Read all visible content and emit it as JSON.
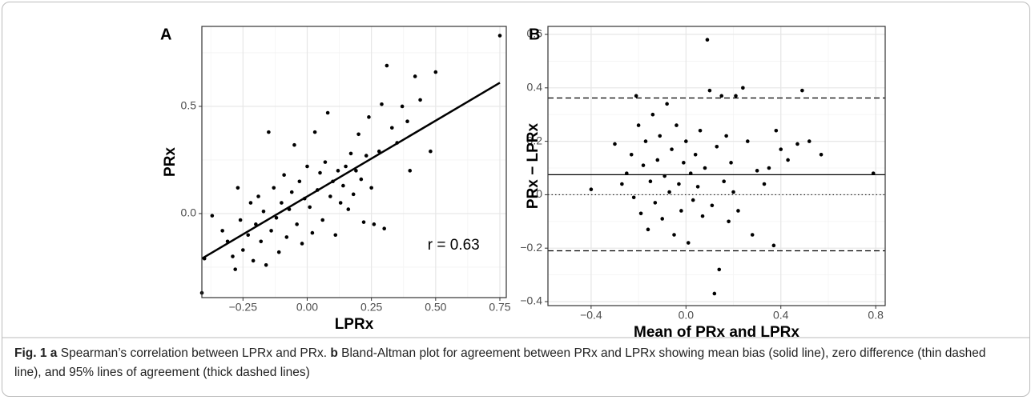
{
  "chart_data": [
    {
      "type": "scatter",
      "panel_label": "A",
      "x_label": "LPRx",
      "y_label": "PRx",
      "color": "#000000",
      "grid": true,
      "xlim": [
        -0.41,
        0.775
      ],
      "ylim": [
        -0.392,
        0.873
      ],
      "xticks": [
        {
          "value": -0.25,
          "label": "−0.25"
        },
        {
          "value": 0,
          "label": "0.00"
        },
        {
          "value": 0.25,
          "label": "0.25"
        },
        {
          "value": 0.5,
          "label": "0.50"
        },
        {
          "value": 0.75,
          "label": "0.75"
        }
      ],
      "yticks": [
        {
          "value": 0,
          "label": "0.0"
        },
        {
          "value": 0.5,
          "label": "0.5"
        }
      ],
      "x": [
        -0.41,
        -0.4,
        -0.37,
        -0.33,
        -0.31,
        -0.29,
        -0.28,
        -0.27,
        -0.26,
        -0.25,
        -0.23,
        -0.22,
        -0.21,
        -0.2,
        -0.19,
        -0.18,
        -0.17,
        -0.16,
        -0.15,
        -0.14,
        -0.13,
        -0.12,
        -0.11,
        -0.1,
        -0.09,
        -0.08,
        -0.07,
        -0.06,
        -0.05,
        -0.04,
        -0.03,
        -0.02,
        -0.01,
        0.0,
        0.01,
        0.02,
        0.03,
        0.04,
        0.05,
        0.06,
        0.07,
        0.08,
        0.09,
        0.1,
        0.11,
        0.12,
        0.13,
        0.14,
        0.15,
        0.16,
        0.17,
        0.18,
        0.19,
        0.2,
        0.21,
        0.22,
        0.23,
        0.24,
        0.25,
        0.26,
        0.28,
        0.29,
        0.3,
        0.31,
        0.33,
        0.35,
        0.37,
        0.39,
        0.4,
        0.42,
        0.44,
        0.48,
        0.5,
        0.75
      ],
      "y": [
        -0.37,
        -0.21,
        -0.01,
        -0.08,
        -0.13,
        -0.2,
        -0.26,
        0.12,
        -0.03,
        -0.17,
        -0.1,
        0.05,
        -0.22,
        -0.05,
        0.08,
        -0.13,
        0.01,
        -0.24,
        0.38,
        -0.08,
        0.12,
        -0.02,
        -0.18,
        0.05,
        0.18,
        -0.11,
        0.02,
        0.1,
        0.32,
        -0.05,
        0.15,
        -0.14,
        0.07,
        0.22,
        0.03,
        -0.09,
        0.38,
        0.11,
        0.19,
        -0.03,
        0.24,
        0.47,
        0.08,
        0.15,
        -0.1,
        0.2,
        0.05,
        0.13,
        0.22,
        0.02,
        0.28,
        0.09,
        0.2,
        0.37,
        0.16,
        -0.04,
        0.27,
        0.45,
        0.12,
        -0.05,
        0.29,
        0.51,
        -0.07,
        0.69,
        0.4,
        0.33,
        0.5,
        0.43,
        0.2,
        0.64,
        0.53,
        0.29,
        0.66,
        0.83
      ],
      "fit_line": {
        "x": [
          -0.41,
          0.75
        ],
        "y": [
          -0.21,
          0.61
        ]
      },
      "annotation": {
        "text": "r = 0.63",
        "x": 0.57,
        "y": -0.15
      }
    },
    {
      "type": "scatter",
      "panel_label": "B",
      "x_label": "Mean of PRx and LPRx",
      "y_label": "PRx − LPRx",
      "color": "#000000",
      "grid": true,
      "xlim": [
        -0.582,
        0.84
      ],
      "ylim": [
        -0.415,
        0.63
      ],
      "xticks": [
        {
          "value": -0.4,
          "label": "−0.4"
        },
        {
          "value": 0,
          "label": "0.0"
        },
        {
          "value": 0.4,
          "label": "0.4"
        },
        {
          "value": 0.8,
          "label": "0.8"
        }
      ],
      "yticks": [
        {
          "value": -0.4,
          "label": "−0.4"
        },
        {
          "value": -0.2,
          "label": "−0.2"
        },
        {
          "value": 0,
          "label": "0.0"
        },
        {
          "value": 0.2,
          "label": "0.2"
        },
        {
          "value": 0.4,
          "label": "0.4"
        },
        {
          "value": 0.6,
          "label": "0.6"
        }
      ],
      "x": [
        -0.4,
        -0.3,
        -0.27,
        -0.25,
        -0.23,
        -0.22,
        -0.21,
        -0.2,
        -0.19,
        -0.18,
        -0.17,
        -0.16,
        -0.15,
        -0.14,
        -0.13,
        -0.12,
        -0.11,
        -0.1,
        -0.09,
        -0.08,
        -0.07,
        -0.06,
        -0.05,
        -0.04,
        -0.03,
        -0.02,
        -0.01,
        0.0,
        0.01,
        0.02,
        0.03,
        0.04,
        0.05,
        0.06,
        0.07,
        0.08,
        0.09,
        0.1,
        0.11,
        0.12,
        0.13,
        0.14,
        0.15,
        0.16,
        0.17,
        0.18,
        0.19,
        0.2,
        0.21,
        0.22,
        0.24,
        0.26,
        0.28,
        0.3,
        0.33,
        0.35,
        0.37,
        0.38,
        0.4,
        0.43,
        0.47,
        0.49,
        0.52,
        0.57,
        0.79
      ],
      "y": [
        0.02,
        0.19,
        0.04,
        0.08,
        0.15,
        -0.01,
        0.37,
        0.26,
        -0.07,
        0.11,
        0.2,
        -0.13,
        0.05,
        0.3,
        -0.03,
        0.13,
        0.22,
        -0.09,
        0.07,
        0.34,
        0.01,
        0.17,
        -0.15,
        0.26,
        0.04,
        -0.06,
        0.12,
        0.2,
        -0.18,
        0.08,
        -0.02,
        0.15,
        0.03,
        0.24,
        -0.08,
        0.1,
        0.58,
        0.39,
        -0.04,
        -0.37,
        0.18,
        -0.28,
        0.37,
        0.05,
        0.22,
        -0.1,
        0.12,
        0.01,
        0.37,
        -0.06,
        0.4,
        0.2,
        -0.15,
        0.09,
        0.04,
        0.1,
        -0.19,
        0.24,
        0.17,
        0.13,
        0.19,
        0.39,
        0.2,
        0.15,
        0.08
      ],
      "hlines": [
        {
          "value": 0.075,
          "style": "solid"
        },
        {
          "value": 0.362,
          "style": "dashed"
        },
        {
          "value": -0.21,
          "style": "dashed"
        },
        {
          "value": 0,
          "style": "dotted"
        }
      ]
    }
  ],
  "caption": {
    "figure": "Fig. 1",
    "a_label": "a",
    "a_text": "Spearman’s correlation between LPRx and PRx.",
    "b_label": "b",
    "b_text": "Bland-Altman plot for agreement between PRx and LPRx showing mean bias (solid line), zero difference (thin dashed line), and 95% lines of agreement (thick dashed lines)"
  }
}
